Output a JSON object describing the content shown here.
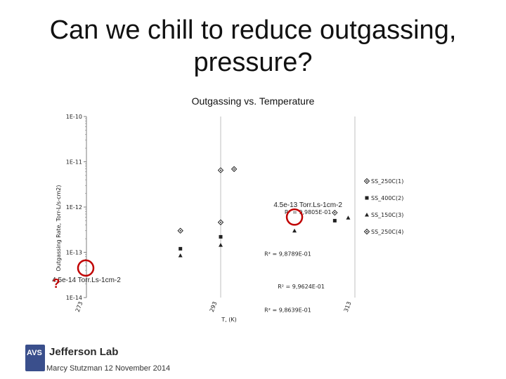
{
  "slide": {
    "title": "Can we chill to reduce outgassing, pressure?",
    "logo_badge": "AVS",
    "logo_text": "Jefferson Lab",
    "footer": "Marcy Stutzman 12 November 2014"
  },
  "chart_data": {
    "type": "scatter",
    "title": "Outgassing vs. Temperature",
    "xlabel": "T, (K)",
    "ylabel": "Outgassing Rate, Torr-L/s-cm2)",
    "y_scale": "log",
    "ylim": [
      1e-14,
      1e-10
    ],
    "xlim": [
      273,
      313
    ],
    "x_tick_labels": [
      {
        "label": "273",
        "x": 273
      },
      {
        "label": "293",
        "x": 293
      },
      {
        "label": "313",
        "x": 313
      }
    ],
    "y_tick_labels": [
      {
        "label": "1E-10",
        "y": 1e-10
      },
      {
        "label": "1E-11",
        "y": 1e-11
      },
      {
        "label": "1E-12",
        "y": 1e-12
      },
      {
        "label": "1E-13",
        "y": 1e-13
      },
      {
        "label": "1E-14",
        "y": 1e-14
      }
    ],
    "legend": {
      "placement": "right",
      "entries": [
        {
          "name": "SS_250C(1)",
          "marker": "diamond"
        },
        {
          "name": "SS_400C(2)",
          "marker": "square"
        },
        {
          "name": "SS_150C(3)",
          "marker": "triangle"
        },
        {
          "name": "SS_250C(4)",
          "marker": "diamond"
        }
      ]
    },
    "series": [
      {
        "name": "SS_250C(1)",
        "marker": "diamond",
        "x": [
          293,
          295
        ],
        "y": [
          6.5e-12,
          6.9e-12
        ]
      },
      {
        "name": "SS_400C(2)",
        "marker": "square",
        "x": [
          287,
          293,
          310
        ],
        "y": [
          1.2e-13,
          2.2e-13,
          5e-13
        ]
      },
      {
        "name": "SS_150C(3)",
        "marker": "triangle",
        "x": [
          287,
          293,
          304,
          312
        ],
        "y": [
          8.5e-14,
          1.45e-13,
          3e-13,
          5.8e-13
        ]
      },
      {
        "name": "SS_250C(4)",
        "marker": "diamond",
        "x": [
          287,
          293,
          310
        ],
        "y": [
          3e-13,
          4.6e-13,
          7.5e-13
        ]
      }
    ],
    "annotations": [
      {
        "text": "4.5e-13 Torr.Ls-1cm-2",
        "kind": "value",
        "at": [
          306,
          1e-12
        ]
      },
      {
        "text": "R² = 9,9805E-01",
        "kind": "fit",
        "at": [
          306,
          7e-13
        ]
      },
      {
        "text": "R² = 9,8789E-01",
        "kind": "fit",
        "at": [
          303,
          8.4e-14
        ]
      },
      {
        "text": "4.5e-14 Torr.Ls-1cm-2",
        "kind": "value",
        "at": [
          273,
          2.2e-14
        ]
      },
      {
        "text": "R² = 9,9624E-01",
        "kind": "fit",
        "at": [
          305,
          1.6e-14
        ]
      },
      {
        "text": "R² = 9,8639E-01",
        "kind": "fit",
        "at": [
          303,
          4.8e-15
        ]
      }
    ],
    "question_mark": "?",
    "highlights": [
      {
        "x": 273,
        "y": 4.5e-14
      },
      {
        "x": 304,
        "y": 6e-13
      }
    ],
    "colors": {
      "highlight": "#c00000",
      "marker": "#222222",
      "gridline": "#bfbfbf"
    }
  }
}
